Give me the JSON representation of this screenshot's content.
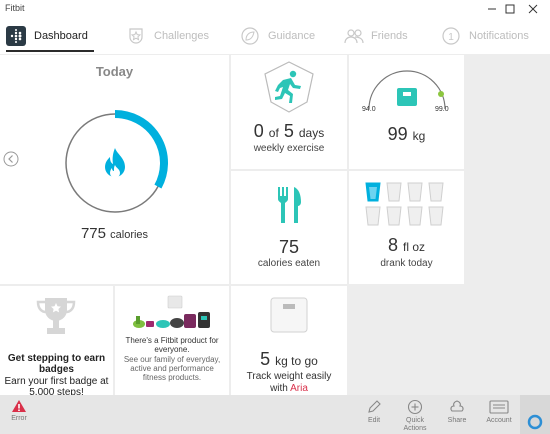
{
  "window": {
    "title": "Fitbit"
  },
  "nav": {
    "tabs": [
      {
        "label": "Dashboard"
      },
      {
        "label": "Challenges"
      },
      {
        "label": "Guidance"
      },
      {
        "label": "Friends"
      },
      {
        "label": "Notifications"
      }
    ]
  },
  "today": {
    "title": "Today",
    "calories_value": "775",
    "calories_unit": "calories",
    "progress_fraction": 0.33
  },
  "exercise": {
    "prefix": "0",
    "of": "of",
    "goal": "5",
    "unit": "days",
    "label": "weekly exercise"
  },
  "weight": {
    "min": "94.0",
    "max": "99.0",
    "value": "99",
    "unit": "kg"
  },
  "food": {
    "value": "75",
    "label": "calories eaten"
  },
  "water": {
    "value": "8",
    "unit": "fl oz",
    "label": "drank today",
    "cups_total": 8,
    "cups_filled": 1
  },
  "badges": {
    "headline": "Get stepping to earn badges",
    "text": "Earn your first badge at 5,000 steps!"
  },
  "promo": {
    "headline": "There's a Fitbit product for everyone.",
    "text": "See our family of everyday, active and performance fitness products."
  },
  "aria": {
    "value": "5",
    "unit": "kg to go",
    "text": "Track weight easily with",
    "link": "Aria"
  },
  "appbar": {
    "error_label": "Error",
    "edit_label": "Edit",
    "quick_label": "Quick Actions",
    "share_label": "Share",
    "account_label": "Account"
  },
  "colors": {
    "accent": "#00b0de",
    "teal": "#2cc5b7",
    "error": "#d9304a",
    "link": "#d9304a",
    "green_dot": "#8cc63f"
  }
}
